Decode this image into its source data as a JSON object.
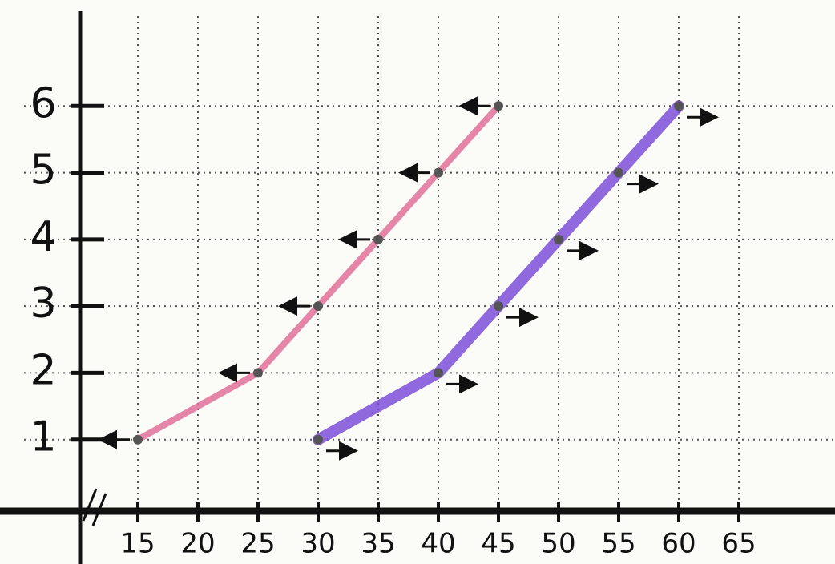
{
  "chart_data": {
    "type": "line",
    "series": [
      {
        "color": "#e0709a",
        "x": [
          15,
          25,
          30,
          35,
          40,
          45
        ],
        "values": [
          1,
          2,
          3,
          4,
          5,
          6
        ]
      },
      {
        "color": "#7b4fd8",
        "x": [
          30,
          40,
          45,
          50,
          55,
          60
        ],
        "values": [
          1,
          2,
          3,
          4,
          5,
          6
        ]
      }
    ],
    "xlim": [
      10,
      70
    ],
    "xticks": [
      15,
      20,
      25,
      30,
      35,
      40,
      45,
      50,
      55,
      60,
      65
    ],
    "ylim": [
      0,
      7
    ],
    "yticks": [
      1,
      2,
      3,
      4,
      5,
      6
    ],
    "grid": true
  }
}
